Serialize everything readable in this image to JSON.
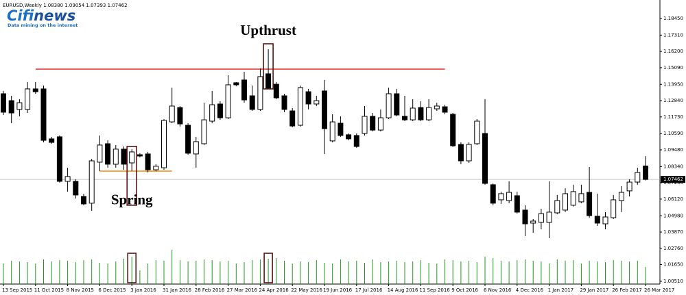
{
  "watermark": {
    "brand_a": "Cifi",
    "brand_b": "news",
    "tagline": "Data mining on the internet"
  },
  "chart_data": {
    "type": "candlestick",
    "title": "EURUSD,Weekly  1.08380 1.09054 1.07393 1.07462",
    "categories": [
      "13 Sep 2015",
      null,
      null,
      null,
      "11 Oct 2015",
      null,
      null,
      null,
      "8 Nov 2015",
      null,
      null,
      null,
      "6 Dec 2015",
      null,
      null,
      null,
      "3 Jan 2016",
      null,
      null,
      null,
      "31 Jan 2016",
      null,
      null,
      null,
      "28 Feb 2016",
      null,
      null,
      null,
      "27 Mar 2016",
      null,
      null,
      null,
      "24 Apr 2016",
      null,
      null,
      null,
      "22 May 2016",
      null,
      null,
      null,
      "19 Jun 2016",
      null,
      null,
      null,
      "17 Jul 2016",
      null,
      null,
      null,
      "14 Aug 2016",
      null,
      null,
      null,
      "11 Sep 2016",
      null,
      null,
      null,
      "9 Oct 2016",
      null,
      null,
      null,
      "6 Nov 2016",
      null,
      null,
      null,
      "4 Dec 2016",
      null,
      null,
      null,
      "1 Jan 2017",
      null,
      null,
      null,
      "29 Jan 2017",
      null,
      null,
      null,
      "26 Feb 2017",
      null,
      null,
      null,
      "26 Mar 2017"
    ],
    "open": [
      1.1331,
      1.1284,
      1.1224,
      1.1224,
      1.1364,
      1.1364,
      1.1023,
      1.1037,
      1.0733,
      1.0733,
      1.063,
      1.0584,
      1.0864,
      1.099,
      1.085,
      1.0953,
      1.0859,
      1.0915,
      1.092,
      1.0812,
      1.0826,
      1.1139,
      1.1237,
      1.1116,
      1.092,
      1.099,
      1.1144,
      1.1261,
      1.1167,
      1.1406,
      1.1425,
      1.1317,
      1.1224,
      1.1467,
      1.1396,
      1.1317,
      1.1214,
      1.1116,
      1.1345,
      1.1261,
      1.135,
      1.1009,
      1.113,
      1.1051,
      1.1046,
      1.106,
      1.1177,
      1.1083,
      1.1167,
      1.1331,
      1.1177,
      1.1153,
      1.1237,
      1.1153,
      1.1228,
      1.1242,
      1.1191,
      1.0985,
      1.0873,
      1.099,
      1.106,
      1.071,
      1.0607,
      1.0602,
      1.0635,
      1.0537,
      1.0448,
      1.0453,
      1.0453,
      1.0518,
      1.0537,
      1.057,
      1.0593,
      1.0658,
      1.0495,
      1.0443,
      1.0485,
      1.0602,
      1.0668,
      1.0728,
      1.0838
    ],
    "high": [
      1.135,
      1.1317,
      1.1294,
      1.1411,
      1.1411,
      1.1387,
      1.1037,
      1.1046,
      1.0826,
      1.0747,
      1.0649,
      1.0887,
      1.1046,
      1.1013,
      1.0981,
      1.0971,
      1.0953,
      1.0925,
      1.0934,
      1.085,
      1.1158,
      1.1373,
      1.1247,
      1.113,
      1.1037,
      1.127,
      1.135,
      1.128,
      1.1457,
      1.1411,
      1.1481,
      1.1387,
      1.1504,
      1.1635,
      1.1411,
      1.1331,
      1.1233,
      1.1387,
      1.1364,
      1.1317,
      1.1425,
      1.1191,
      1.1177,
      1.106,
      1.106,
      1.1247,
      1.12,
      1.1224,
      1.1373,
      1.1364,
      1.1317,
      1.1294,
      1.128,
      1.1294,
      1.127,
      1.1256,
      1.12,
      1.0999,
      1.0999,
      1.1158,
      1.1294,
      1.0719,
      1.0663,
      1.0733,
      1.0663,
      1.057,
      1.0476,
      1.0546,
      1.0733,
      1.064,
      1.0686,
      1.071,
      1.071,
      1.0831,
      1.0649,
      1.0523,
      1.064,
      1.07,
      1.0747,
      1.0826,
      1.09054
    ],
    "low": [
      1.1186,
      1.113,
      1.1177,
      1.12,
      1.1331,
      1.0999,
      1.099,
      1.0724,
      1.0663,
      1.0616,
      1.057,
      1.0532,
      1.0803,
      1.0826,
      1.0826,
      1.0812,
      1.0803,
      1.0897,
      1.0794,
      1.0803,
      1.0812,
      1.113,
      1.1107,
      1.0915,
      1.0826,
      1.0981,
      1.113,
      1.1153,
      1.1158,
      1.1382,
      1.127,
      1.1214,
      1.1214,
      1.1364,
      1.1294,
      1.1205,
      1.1102,
      1.1107,
      1.1224,
      1.1247,
      1.092,
      1.0999,
      1.1037,
      1.1013,
      1.0962,
      1.1046,
      1.1074,
      1.1074,
      1.1158,
      1.1177,
      1.1144,
      1.1144,
      1.1144,
      1.1144,
      1.1214,
      1.1191,
      1.0967,
      1.085,
      1.0859,
      1.0981,
      1.071,
      1.057,
      1.0579,
      1.0584,
      1.0513,
      1.0359,
      1.0382,
      1.0406,
      1.0345,
      1.0509,
      1.0523,
      1.0561,
      1.0584,
      1.0485,
      1.0429,
      1.0406,
      1.0476,
      1.0523,
      1.063,
      1.071,
      1.07393
    ],
    "close": [
      1.1205,
      1.12,
      1.127,
      1.1364,
      1.1345,
      1.1013,
      1.0999,
      1.0733,
      1.0766,
      1.064,
      1.0579,
      1.0873,
      1.0981,
      1.085,
      1.0953,
      1.085,
      1.0934,
      1.0906,
      1.0812,
      1.0836,
      1.1149,
      1.1247,
      1.1125,
      1.0925,
      1.1004,
      1.1153,
      1.1256,
      1.1167,
      1.1392,
      1.1392,
      1.1289,
      1.1224,
      1.1448,
      1.1368,
      1.1303,
      1.1224,
      1.1111,
      1.1373,
      1.1261,
      1.1284,
      1.1093,
      1.1139,
      1.1046,
      1.1023,
      1.0971,
      1.1177,
      1.1083,
      1.1167,
      1.1331,
      1.1186,
      1.1153,
      1.1233,
      1.1153,
      1.1237,
      1.1247,
      1.1205,
      1.0976,
      1.0873,
      1.0985,
      1.1144,
      1.0719,
      1.0584,
      1.0649,
      1.0658,
      1.0523,
      1.0443,
      1.0462,
      1.0513,
      1.0523,
      1.0602,
      1.0649,
      1.0663,
      1.0649,
      1.0499,
      1.0448,
      1.049,
      1.0607,
      1.0658,
      1.0728,
      1.0794,
      1.07462
    ],
    "up_color": "#ffffff",
    "down_color": "#000000",
    "volume": {
      "color": "#1f9a1f",
      "axis": "y2",
      "values": [
        30,
        34,
        33,
        32,
        30,
        36,
        33,
        35,
        34,
        32,
        35,
        36,
        31,
        30,
        33,
        37,
        40,
        20,
        30,
        35,
        34,
        50,
        35,
        33,
        34,
        36,
        35,
        33,
        34,
        30,
        32,
        35,
        36,
        37,
        38,
        34,
        30,
        33,
        32,
        35,
        31,
        30,
        36,
        33,
        34,
        31,
        36,
        32,
        33,
        34,
        32,
        33,
        35,
        31,
        30,
        36,
        35,
        33,
        34,
        32,
        40,
        38,
        34,
        33,
        35,
        36,
        34,
        33,
        30,
        36,
        34,
        35,
        30,
        34,
        33,
        32,
        35,
        34,
        33,
        34,
        25
      ]
    },
    "y2lim": [
      0,
      100
    ],
    "ylim": [
      1.0032,
      1.1971
    ],
    "yticks": [
      {
        "value": 1.1845,
        "label": "1.18450"
      },
      {
        "value": 1.1731,
        "label": "1.17310"
      },
      {
        "value": 1.162,
        "label": "1.16200"
      },
      {
        "value": 1.1509,
        "label": "1.15090"
      },
      {
        "value": 1.1395,
        "label": "1.13950"
      },
      {
        "value": 1.1284,
        "label": "1.12840"
      },
      {
        "value": 1.1173,
        "label": "1.11730"
      },
      {
        "value": 1.1059,
        "label": "1.10590"
      },
      {
        "value": 1.0948,
        "label": "1.09480"
      },
      {
        "value": 1.0834,
        "label": "1.08340"
      },
      {
        "value": 1.0723,
        "label": "1.07230"
      },
      {
        "value": 1.0612,
        "label": "1.06120"
      },
      {
        "value": 1.0498,
        "label": "1.04980"
      },
      {
        "value": 1.0387,
        "label": "1.03870"
      },
      {
        "value": 1.0276,
        "label": "1.02760"
      },
      {
        "value": 1.0165,
        "label": "1.01650"
      },
      {
        "value": 1.0051,
        "label": "1.00510"
      }
    ],
    "last_price": 1.07462,
    "levels": [
      {
        "value": 1.1499,
        "from": 4,
        "to": 55,
        "color": "#e02a2a"
      },
      {
        "value": 1.0803,
        "from": 12,
        "to": 21,
        "color": "#f08a00"
      }
    ],
    "annotations": [
      {
        "text": "Spring",
        "index": 16,
        "low": 1.057,
        "high": 1.0971,
        "position": "below"
      },
      {
        "text": "Upthrust",
        "index": 33,
        "low": 1.1364,
        "high": 1.1672,
        "position": "above"
      }
    ],
    "grid": false
  }
}
